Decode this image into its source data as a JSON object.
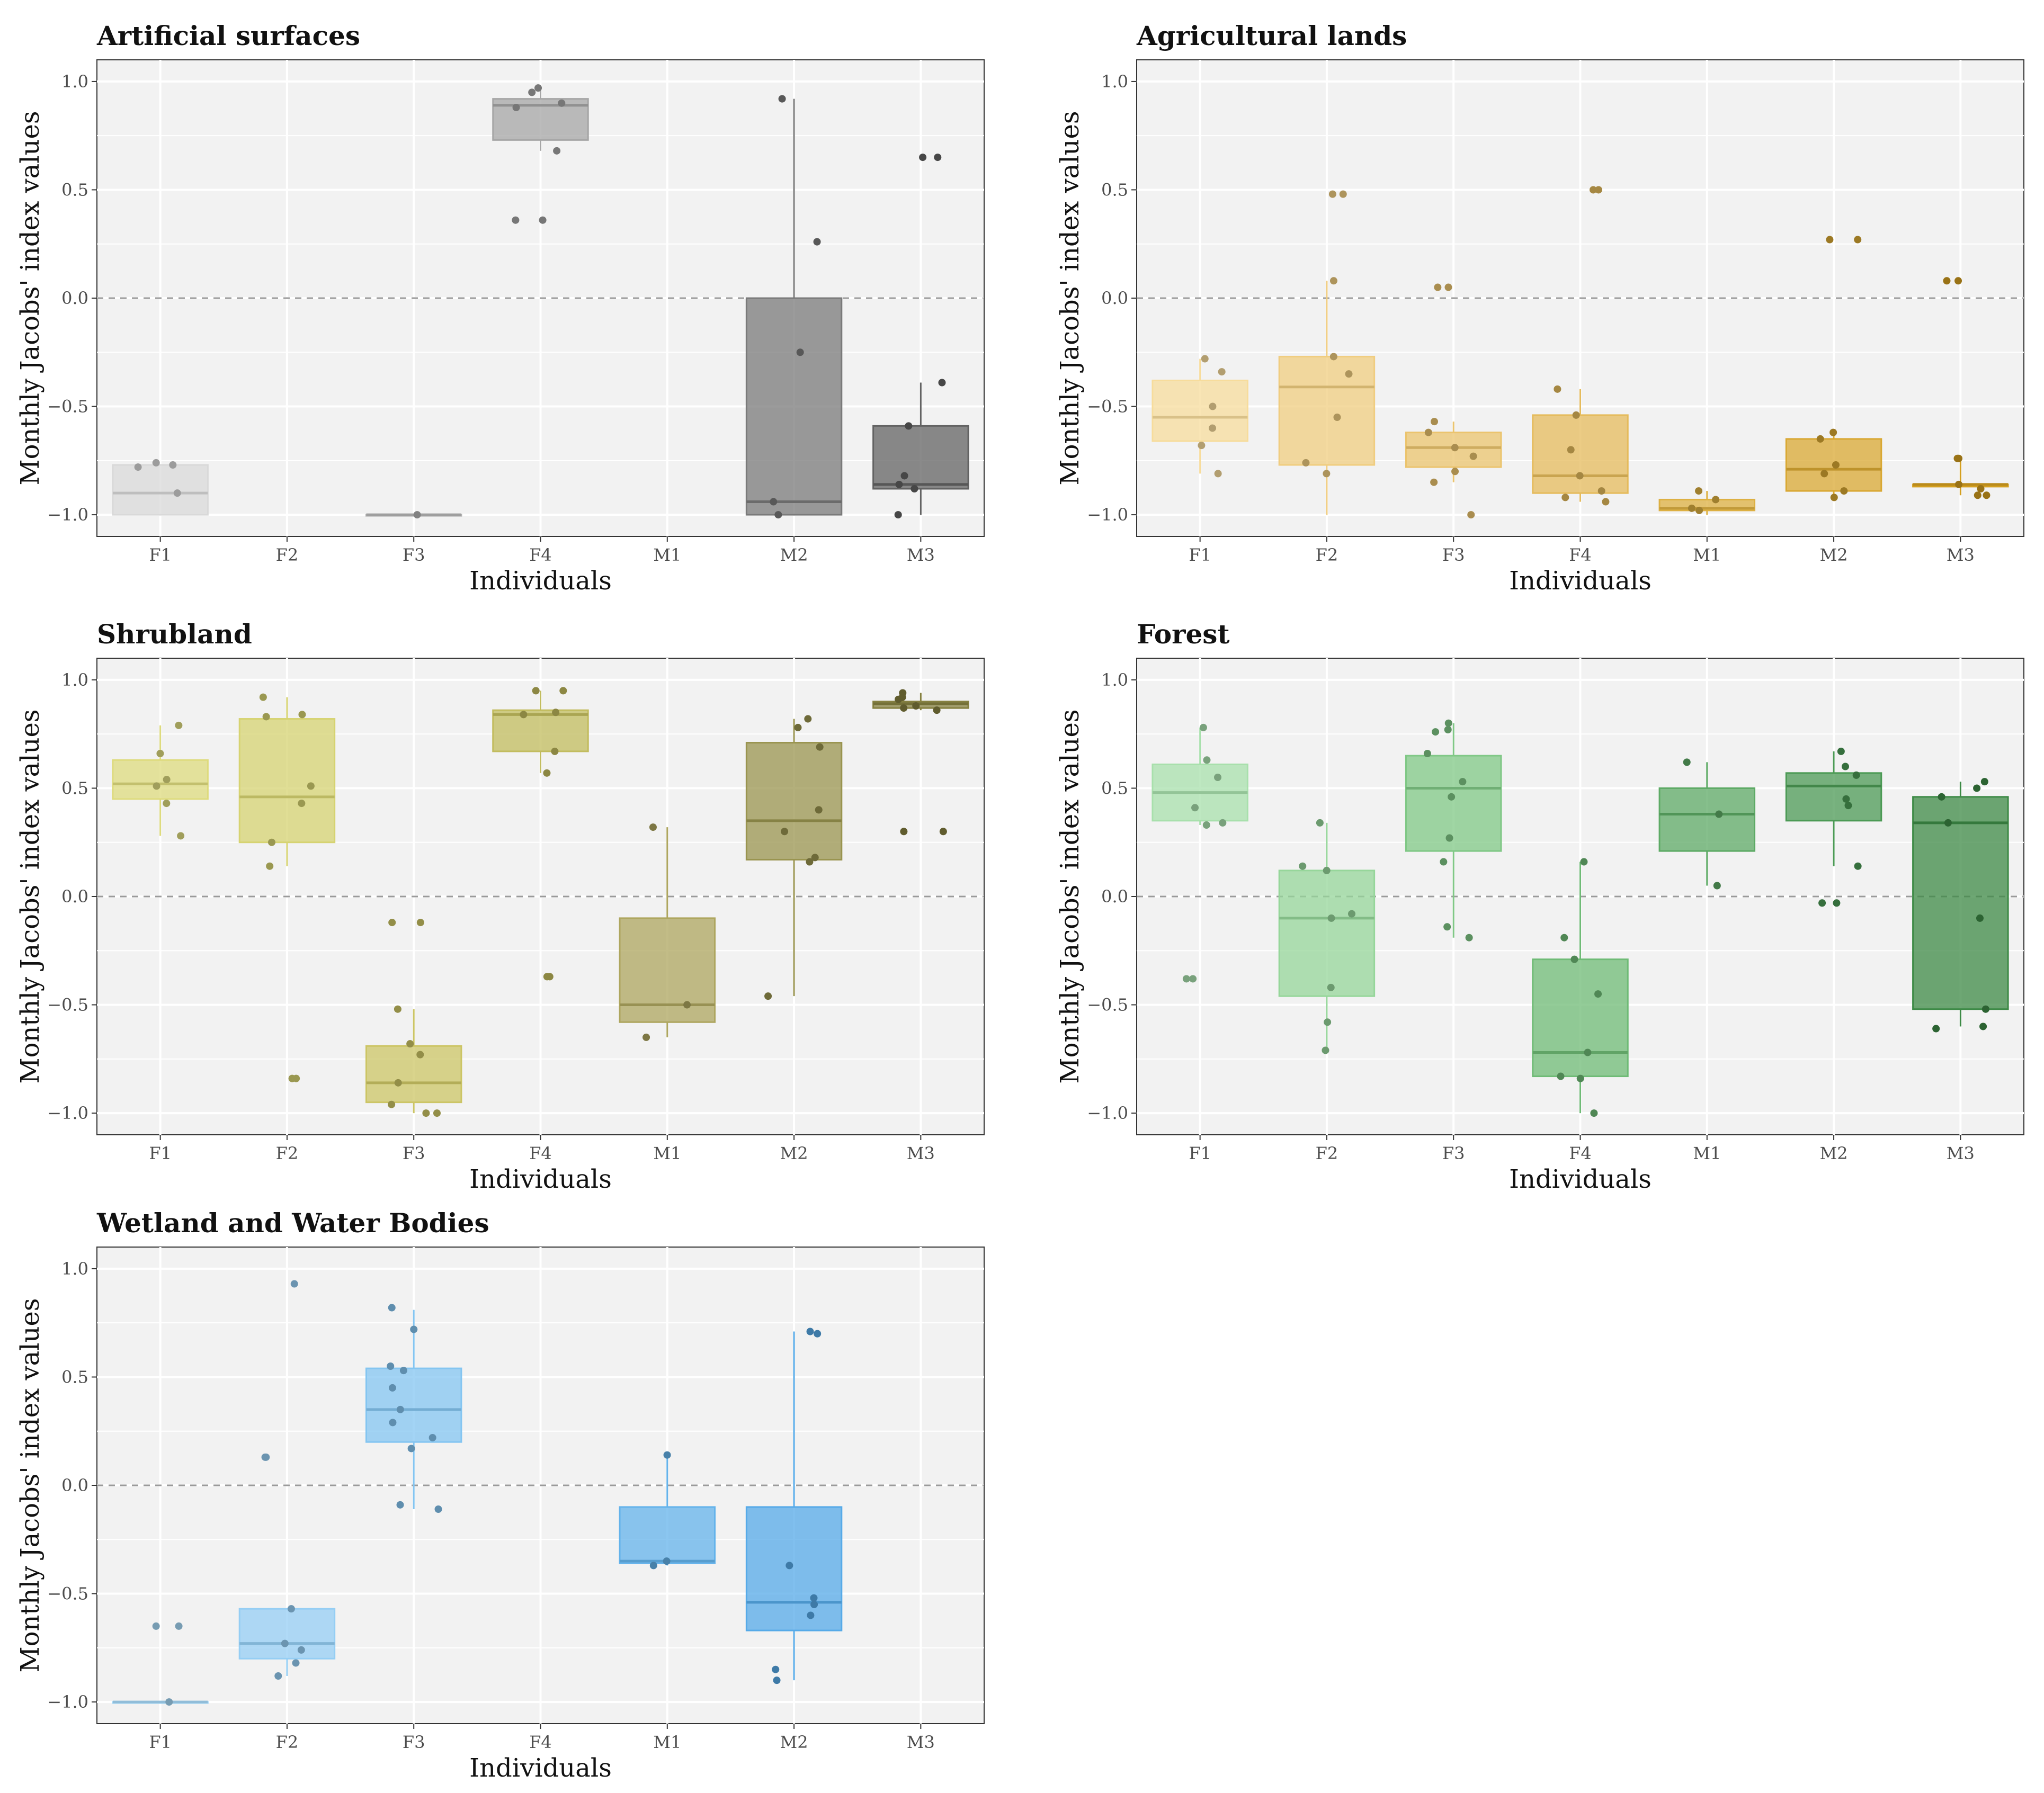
{
  "chart_data": [
    {
      "type": "boxplot",
      "title": "Artificial surfaces",
      "xlabel": "Individuals",
      "ylabel": "Monthly Jacobs' index values",
      "ylim": [
        -1.1,
        1.1
      ],
      "yticks": [
        "1.0",
        "0.5",
        "0.0",
        "−0.5",
        "−1.0"
      ],
      "ytick_values": [
        1.0,
        0.5,
        0.0,
        -0.5,
        -1.0
      ],
      "reference_line": 0,
      "categories": [
        "F1",
        "F2",
        "F3",
        "F4",
        "M1",
        "M2",
        "M3"
      ],
      "colors": [
        "#d9d9d9",
        "#c4c4c4",
        "#b5b5b5",
        "#a6a6a6",
        "#8f8f8f",
        "#7a7a7a",
        "#636363"
      ],
      "boxes": [
        {
          "category": "F1",
          "min": -1.0,
          "q1": -1.0,
          "median": -0.9,
          "q3": -0.77,
          "max": -0.77,
          "points": [
            -0.77,
            -0.78,
            -0.76,
            -0.9
          ]
        },
        {
          "category": "F3",
          "min": -1.0,
          "q1": -1.0,
          "median": -1.0,
          "q3": -1.0,
          "max": -1.0,
          "points": [
            -1.0
          ]
        },
        {
          "category": "F4",
          "min": 0.68,
          "q1": 0.73,
          "median": 0.89,
          "q3": 0.92,
          "max": 0.96,
          "points": [
            0.97,
            0.95,
            0.9,
            0.88,
            0.68,
            0.36,
            0.36
          ]
        },
        {
          "category": "M2",
          "min": -1.0,
          "q1": -1.0,
          "median": -0.94,
          "q3": 0.0,
          "max": 0.92,
          "points": [
            0.92,
            0.26,
            -0.25,
            -0.94,
            -1.0
          ]
        },
        {
          "category": "M3",
          "min": -1.0,
          "q1": -0.88,
          "median": -0.86,
          "q3": -0.59,
          "max": -0.39,
          "points": [
            0.65,
            0.65,
            -0.39,
            -0.59,
            -0.82,
            -0.86,
            -0.88,
            -1.0
          ]
        }
      ]
    },
    {
      "type": "boxplot",
      "title": "Agricultural lands",
      "xlabel": "Individuals",
      "ylabel": "Monthly Jacobs' index values",
      "ylim": [
        -1.1,
        1.1
      ],
      "yticks": [
        "1.0",
        "0.5",
        "0.0",
        "−0.5",
        "−1.0"
      ],
      "ytick_values": [
        1.0,
        0.5,
        0.0,
        -0.5,
        -1.0
      ],
      "reference_line": 0,
      "categories": [
        "F1",
        "F2",
        "F3",
        "F4",
        "M1",
        "M2",
        "M3"
      ],
      "colors": [
        "#f7dc9c",
        "#f0cd80",
        "#ebc46e",
        "#e5bb5c",
        "#ddb042",
        "#d9a833",
        "#d49f1f"
      ],
      "boxes": [
        {
          "category": "F1",
          "min": -0.81,
          "q1": -0.66,
          "median": -0.55,
          "q3": -0.38,
          "max": -0.28,
          "points": [
            -0.28,
            -0.34,
            -0.5,
            -0.6,
            -0.68,
            -0.81
          ]
        },
        {
          "category": "F2",
          "min": -1.0,
          "q1": -0.77,
          "median": -0.41,
          "q3": -0.27,
          "max": 0.08,
          "points": [
            0.48,
            0.48,
            0.08,
            -0.27,
            -0.35,
            -0.55,
            -0.76,
            -0.81
          ]
        },
        {
          "category": "F3",
          "min": -0.85,
          "q1": -0.78,
          "median": -0.69,
          "q3": -0.62,
          "max": -0.57,
          "points": [
            0.05,
            0.05,
            -0.57,
            -0.62,
            -0.69,
            -0.73,
            -0.8,
            -0.85,
            -1.0
          ]
        },
        {
          "category": "F4",
          "min": -0.94,
          "q1": -0.9,
          "median": -0.82,
          "q3": -0.54,
          "max": -0.42,
          "points": [
            0.5,
            0.5,
            -0.42,
            -0.54,
            -0.7,
            -0.82,
            -0.89,
            -0.92,
            -0.94
          ]
        },
        {
          "category": "M1",
          "min": -1.0,
          "q1": -0.98,
          "median": -0.97,
          "q3": -0.93,
          "max": -0.89,
          "points": [
            -0.89,
            -0.93,
            -0.97,
            -0.98
          ]
        },
        {
          "category": "M2",
          "min": -0.92,
          "q1": -0.89,
          "median": -0.79,
          "q3": -0.65,
          "max": -0.62,
          "points": [
            0.27,
            0.27,
            -0.62,
            -0.65,
            -0.77,
            -0.81,
            -0.89,
            -0.92
          ]
        },
        {
          "category": "M3",
          "min": -0.91,
          "q1": -0.87,
          "median": -0.86,
          "q3": -0.86,
          "max": -0.74,
          "points": [
            0.08,
            0.08,
            -0.74,
            -0.74,
            -0.86,
            -0.88,
            -0.91,
            -0.91
          ]
        }
      ]
    },
    {
      "type": "boxplot",
      "title": "Shrubland",
      "xlabel": "Individuals",
      "ylabel": "Monthly Jacobs' index values",
      "ylim": [
        -1.1,
        1.1
      ],
      "yticks": [
        "1.0",
        "0.5",
        "0.0",
        "−0.5",
        "−1.0"
      ],
      "ytick_values": [
        1.0,
        0.5,
        0.0,
        -0.5,
        -1.0
      ],
      "reference_line": 0,
      "categories": [
        "F1",
        "F2",
        "F3",
        "F4",
        "M1",
        "M2",
        "M3"
      ],
      "colors": [
        "#dedb7e",
        "#d6d371",
        "#ccc565",
        "#c2bc5e",
        "#aea65f",
        "#99944f",
        "#858040"
      ],
      "boxes": [
        {
          "category": "F1",
          "min": 0.28,
          "q1": 0.45,
          "median": 0.52,
          "q3": 0.63,
          "max": 0.79,
          "points": [
            0.79,
            0.66,
            0.54,
            0.51,
            0.43,
            0.28
          ]
        },
        {
          "category": "F2",
          "min": 0.14,
          "q1": 0.25,
          "median": 0.46,
          "q3": 0.82,
          "max": 0.92,
          "points": [
            0.92,
            0.83,
            0.84,
            0.51,
            0.43,
            0.25,
            0.14,
            -0.84,
            -0.84
          ]
        },
        {
          "category": "F3",
          "min": -1.0,
          "q1": -0.95,
          "median": -0.86,
          "q3": -0.69,
          "max": -0.52,
          "points": [
            -0.12,
            -0.12,
            -0.52,
            -0.68,
            -0.73,
            -0.86,
            -0.96,
            -1.0,
            -1.0
          ]
        },
        {
          "category": "F4",
          "min": 0.57,
          "q1": 0.67,
          "median": 0.84,
          "q3": 0.86,
          "max": 0.95,
          "points": [
            0.95,
            0.95,
            0.84,
            0.85,
            0.67,
            0.57,
            -0.37,
            -0.37
          ]
        },
        {
          "category": "M1",
          "min": -0.65,
          "q1": -0.58,
          "median": -0.5,
          "q3": -0.1,
          "max": 0.32,
          "points": [
            0.32,
            -0.5,
            -0.65
          ]
        },
        {
          "category": "M2",
          "min": -0.46,
          "q1": 0.17,
          "median": 0.35,
          "q3": 0.71,
          "max": 0.82,
          "points": [
            0.82,
            0.78,
            0.69,
            0.4,
            0.3,
            0.18,
            0.16,
            -0.46
          ]
        },
        {
          "category": "M3",
          "min": 0.86,
          "q1": 0.87,
          "median": 0.89,
          "q3": 0.9,
          "max": 0.94,
          "points": [
            0.94,
            0.92,
            0.91,
            0.88,
            0.87,
            0.86,
            0.3,
            0.3
          ]
        }
      ]
    },
    {
      "type": "boxplot",
      "title": "Forest",
      "xlabel": "Individuals",
      "ylabel": "Monthly Jacobs' index values",
      "ylim": [
        -1.1,
        1.1
      ],
      "yticks": [
        "1.0",
        "0.5",
        "0.0",
        "−0.5",
        "−1.0"
      ],
      "ytick_values": [
        1.0,
        0.5,
        0.0,
        -0.5,
        -1.0
      ],
      "reference_line": 0,
      "categories": [
        "F1",
        "F2",
        "F3",
        "F4",
        "M1",
        "M2",
        "M3"
      ],
      "colors": [
        "#a8e0ac",
        "#96d69a",
        "#80c886",
        "#6fbb76",
        "#5daa65",
        "#4c9a55",
        "#3d8a46"
      ],
      "boxes": [
        {
          "category": "F1",
          "min": 0.33,
          "q1": 0.35,
          "median": 0.48,
          "q3": 0.61,
          "max": 0.78,
          "points": [
            0.78,
            0.63,
            0.55,
            0.41,
            0.34,
            0.33,
            -0.38,
            -0.38
          ]
        },
        {
          "category": "F2",
          "min": -0.71,
          "q1": -0.46,
          "median": -0.1,
          "q3": 0.12,
          "max": 0.34,
          "points": [
            0.34,
            0.14,
            0.12,
            -0.08,
            -0.1,
            -0.42,
            -0.58,
            -0.71
          ]
        },
        {
          "category": "F3",
          "min": -0.19,
          "q1": 0.21,
          "median": 0.5,
          "q3": 0.65,
          "max": 0.8,
          "points": [
            0.8,
            0.77,
            0.76,
            0.66,
            0.53,
            0.46,
            0.27,
            0.16,
            -0.14,
            -0.19
          ]
        },
        {
          "category": "F4",
          "min": -1.0,
          "q1": -0.83,
          "median": -0.72,
          "q3": -0.29,
          "max": 0.16,
          "points": [
            0.16,
            -0.19,
            -0.29,
            -0.45,
            -0.72,
            -0.83,
            -0.84,
            -1.0
          ]
        },
        {
          "category": "M1",
          "min": 0.05,
          "q1": 0.21,
          "median": 0.38,
          "q3": 0.5,
          "max": 0.62,
          "points": [
            0.62,
            0.38,
            0.05
          ]
        },
        {
          "category": "M2",
          "min": 0.14,
          "q1": 0.35,
          "median": 0.51,
          "q3": 0.57,
          "max": 0.67,
          "points": [
            0.67,
            0.6,
            0.56,
            0.45,
            0.42,
            0.14,
            -0.03,
            -0.03
          ]
        },
        {
          "category": "M3",
          "min": -0.6,
          "q1": -0.52,
          "median": 0.34,
          "q3": 0.46,
          "max": 0.53,
          "points": [
            0.53,
            0.5,
            0.46,
            0.34,
            -0.1,
            -0.52,
            -0.6,
            -0.61
          ]
        }
      ]
    },
    {
      "type": "boxplot",
      "title": "Wetland and Water Bodies",
      "xlabel": "Individuals",
      "ylabel": "Monthly Jacobs' index values",
      "ylim": [
        -1.1,
        1.1
      ],
      "yticks": [
        "1.0",
        "0.5",
        "0.0",
        "−0.5",
        "−1.0"
      ],
      "ytick_values": [
        1.0,
        0.5,
        0.0,
        -0.5,
        -1.0
      ],
      "reference_line": 0,
      "categories": [
        "F1",
        "F2",
        "F3",
        "F4",
        "M1",
        "M2",
        "M3"
      ],
      "colors": [
        "#a6d8f7",
        "#95cef4",
        "#84c5f1",
        "#72bcee",
        "#64b3eb",
        "#56aae8",
        "#489fe3"
      ],
      "boxes": [
        {
          "category": "F1",
          "min": -1.0,
          "q1": -1.0,
          "median": -1.0,
          "q3": -1.0,
          "max": -1.0,
          "points": [
            -0.65,
            -0.65,
            -1.0
          ]
        },
        {
          "category": "F2",
          "min": -0.88,
          "q1": -0.8,
          "median": -0.73,
          "q3": -0.57,
          "max": -0.57,
          "points": [
            0.93,
            0.13,
            0.13,
            -0.57,
            -0.73,
            -0.76,
            -0.82,
            -0.88
          ]
        },
        {
          "category": "F3",
          "min": -0.11,
          "q1": 0.2,
          "median": 0.35,
          "q3": 0.54,
          "max": 0.81,
          "points": [
            0.82,
            0.72,
            0.55,
            0.53,
            0.45,
            0.35,
            0.29,
            0.22,
            0.17,
            -0.09,
            -0.11
          ]
        },
        {
          "category": "M1",
          "min": -0.37,
          "q1": -0.36,
          "median": -0.35,
          "q3": -0.1,
          "max": 0.14,
          "points": [
            0.14,
            -0.35,
            -0.37
          ]
        },
        {
          "category": "M2",
          "min": -0.9,
          "q1": -0.67,
          "median": -0.54,
          "q3": -0.1,
          "max": 0.71,
          "points": [
            0.71,
            0.7,
            -0.37,
            -0.52,
            -0.55,
            -0.6,
            -0.85,
            -0.9
          ]
        }
      ]
    }
  ]
}
